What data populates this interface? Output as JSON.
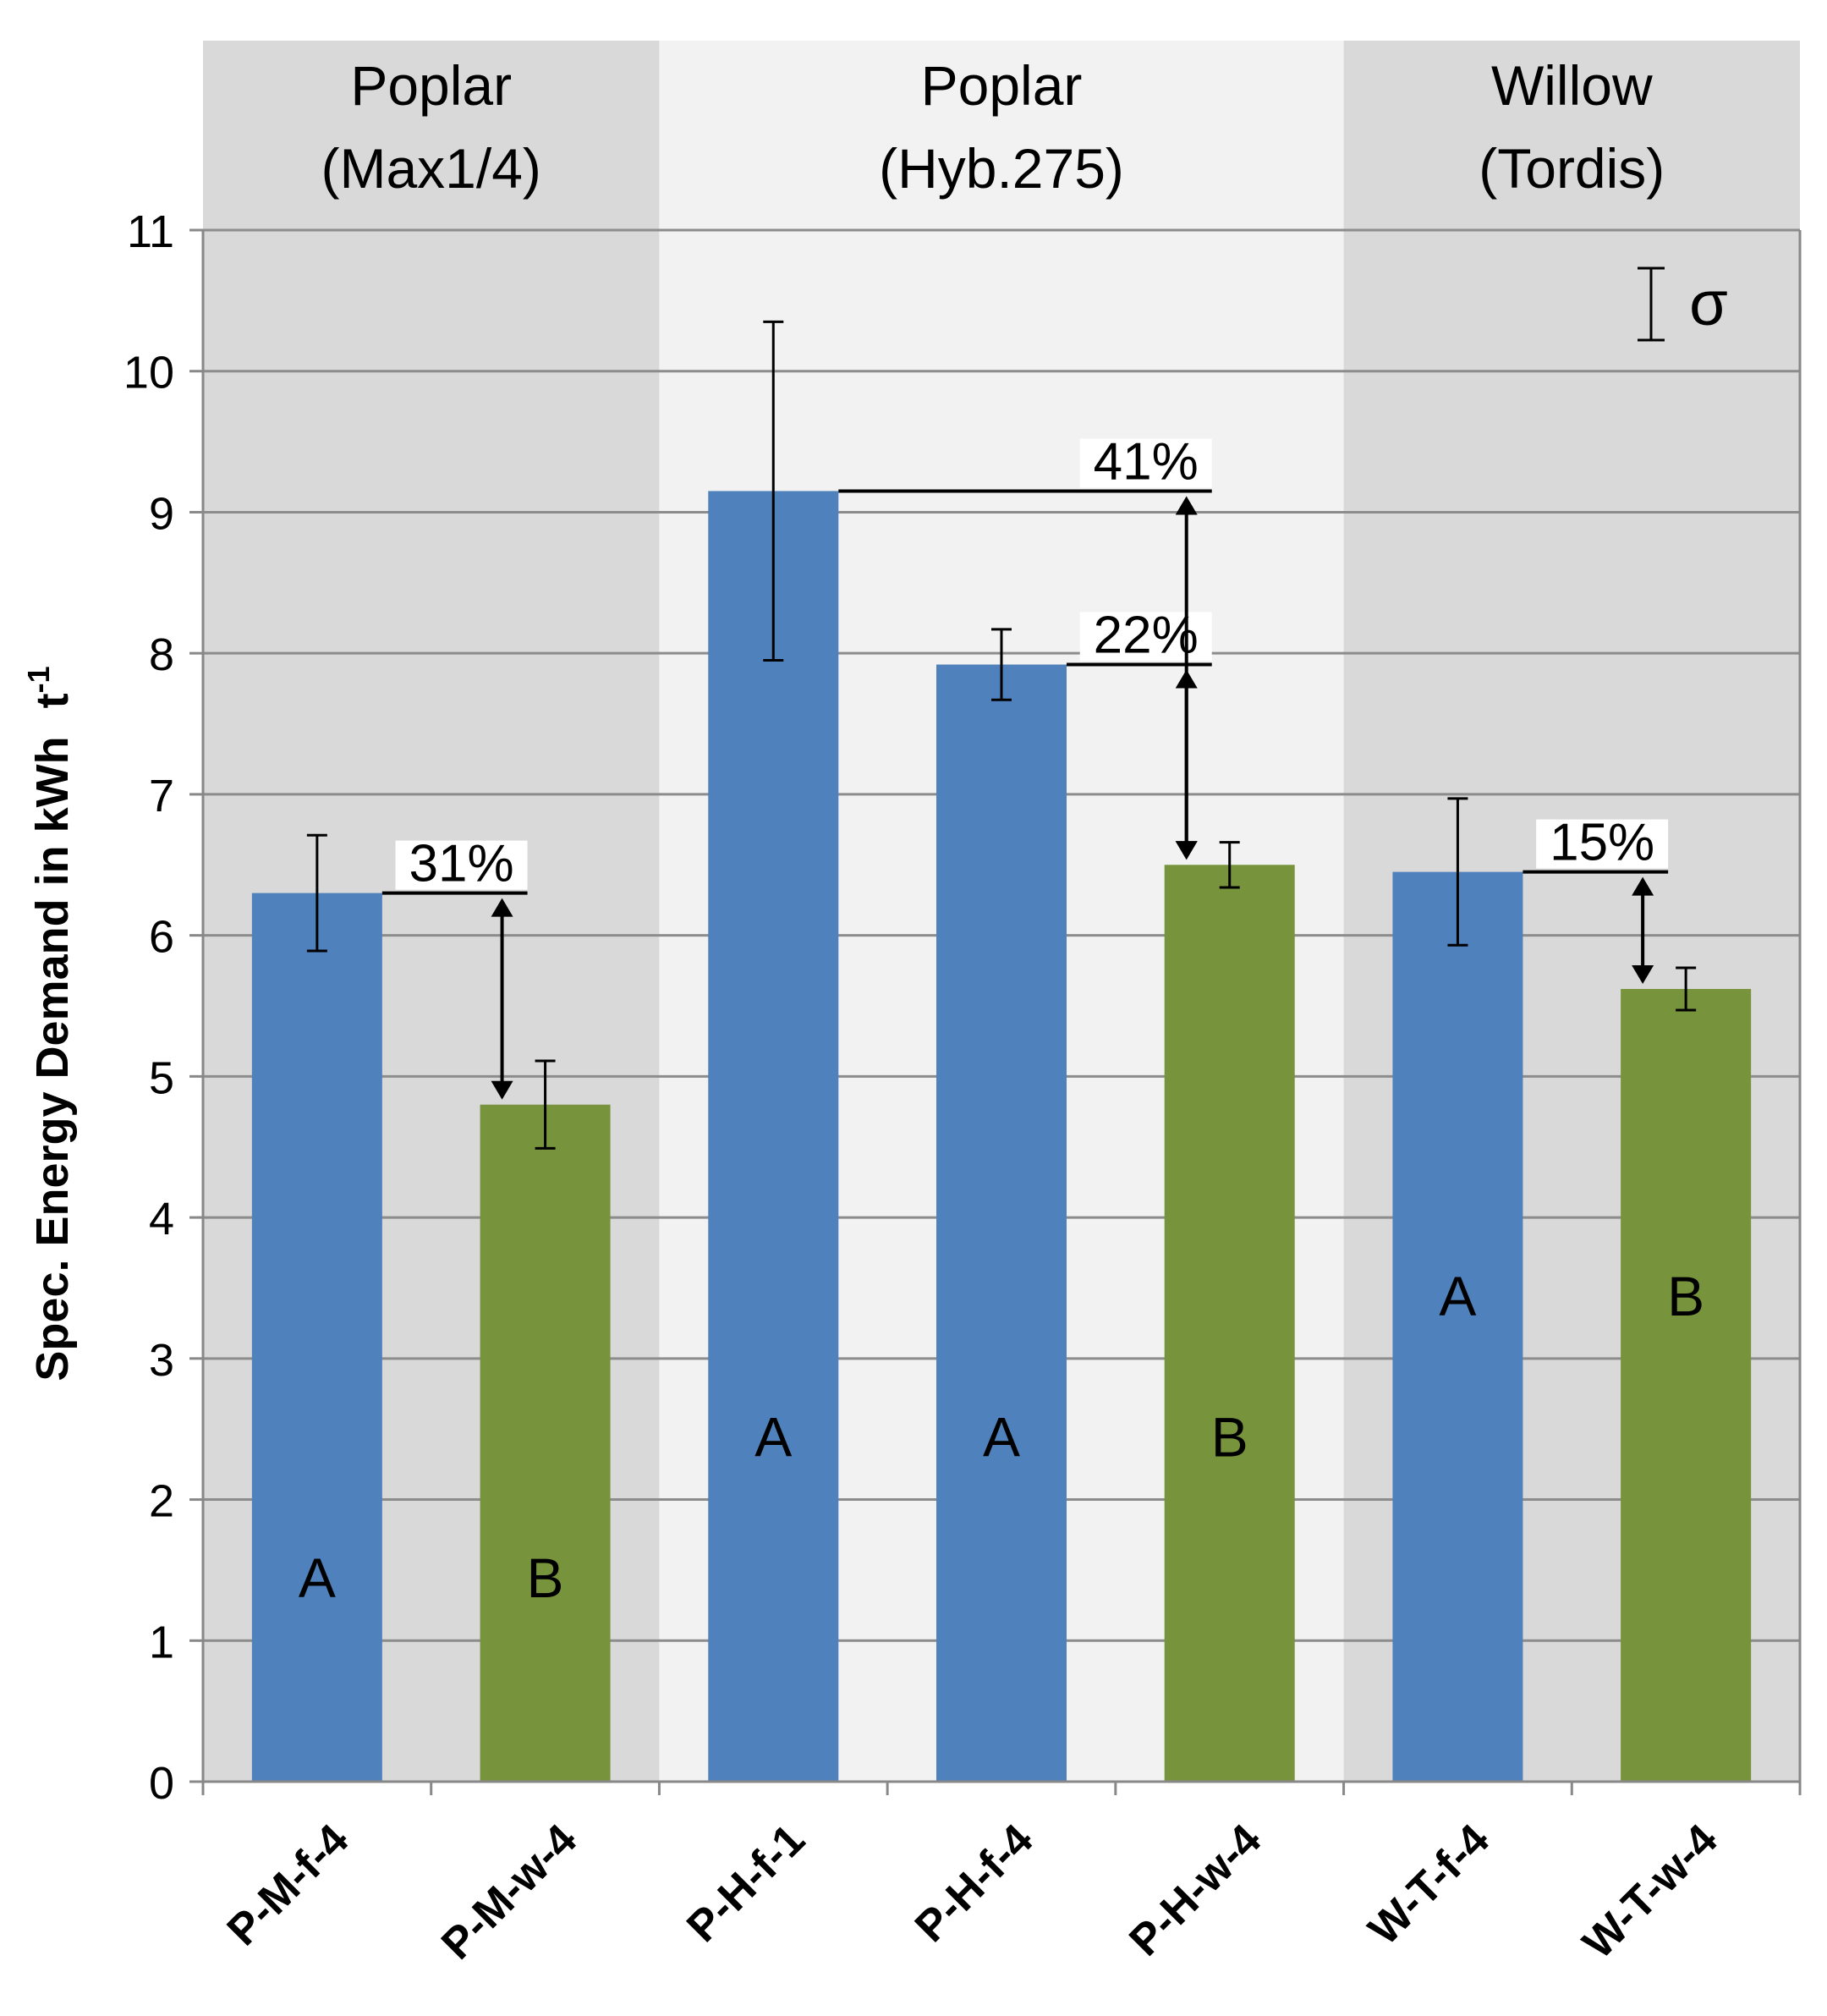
{
  "chart_data": {
    "type": "bar",
    "ylabel": "Spec. Energy Demand in kWh",
    "ylabel_unit": "t",
    "ylabel_sup": "-1",
    "ylim": [
      0,
      11
    ],
    "yticks": [
      "0",
      "1",
      "2",
      "3",
      "4",
      "5",
      "6",
      "7",
      "8",
      "9",
      "10",
      "11"
    ],
    "categories": [
      "P-M-f-4",
      "P-M-w-4",
      "P-H-f-1",
      "P-H-f-4",
      "P-H-w-4",
      "W-T-f-4",
      "W-T-w-4"
    ],
    "values": [
      6.3,
      4.8,
      9.15,
      7.92,
      6.5,
      6.45,
      5.62
    ],
    "errors": [
      0.41,
      0.31,
      1.2,
      0.25,
      0.16,
      0.52,
      0.15
    ],
    "bar_types": [
      "f",
      "w",
      "f",
      "f",
      "w",
      "f",
      "w"
    ],
    "letters": [
      "A",
      "B",
      "A",
      "A",
      "B",
      "A",
      "B"
    ],
    "letter_y": [
      1.45,
      1.45,
      2.45,
      2.45,
      2.45,
      3.45,
      3.45
    ],
    "groups": [
      {
        "line1": "Poplar",
        "line2": "(Max1/4)",
        "start": 0,
        "end": 2
      },
      {
        "line1": "Poplar",
        "line2": "(Hyb.275)",
        "start": 2,
        "end": 5
      },
      {
        "line1": "Willow",
        "line2": "(Tordis)",
        "start": 5,
        "end": 7
      }
    ],
    "comparisons": [
      {
        "from": 0,
        "to": 1,
        "label": "31%"
      },
      {
        "from": 3,
        "to": 4,
        "label": "22%"
      },
      {
        "from": 2,
        "to": 4,
        "label": "41%"
      },
      {
        "from": 5,
        "to": 6,
        "label": "15%"
      }
    ],
    "legend_symbol": "σ",
    "colors": {
      "f": "#4f81bd",
      "w": "#77933c",
      "band_dark": "#d9d9d9",
      "band_light": "#f2f2f2",
      "grid": "#8c8c8c"
    }
  }
}
